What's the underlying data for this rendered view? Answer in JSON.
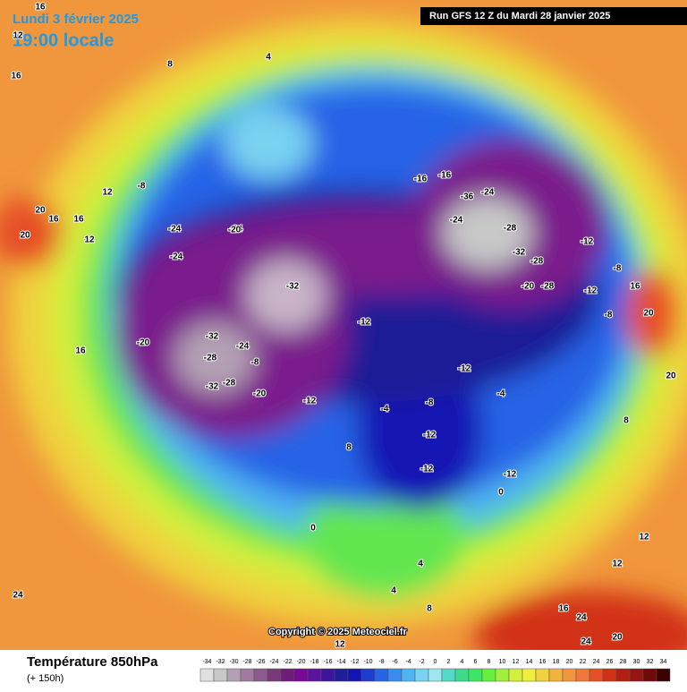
{
  "header": {
    "valid_date": "Lundi 3 février 2025",
    "local_time": "19:00 locale",
    "run": "Run GFS 12 Z du Mardi 28 janvier 2025"
  },
  "copyright": "Copyright © 2025 Meteociel.fr",
  "footer": {
    "title": "Température 850hPa",
    "lead": "(+ 150h)"
  },
  "colorbar": {
    "ticks": [
      -34,
      -32,
      -30,
      -28,
      -26,
      -24,
      -22,
      -20,
      -18,
      -16,
      -14,
      -12,
      -10,
      -8,
      -6,
      -4,
      -2,
      0,
      2,
      4,
      6,
      8,
      10,
      12,
      14,
      16,
      18,
      20,
      22,
      24,
      26,
      28,
      30,
      32,
      34
    ],
    "colors": [
      "#e0e0e0",
      "#c8c8c8",
      "#b4a0b4",
      "#a07aa0",
      "#8c5a8c",
      "#7a3a7a",
      "#6e1e7a",
      "#7a0a96",
      "#5a14a0",
      "#3c14a0",
      "#1e1e96",
      "#1414b4",
      "#1e3cd2",
      "#2864e6",
      "#3c8cf0",
      "#50b4f0",
      "#78d2f0",
      "#a0e6f0",
      "#50dcc8",
      "#3cdc8c",
      "#3ce664",
      "#64f03c",
      "#a0f03c",
      "#d2f03c",
      "#f0f03c",
      "#f0d23c",
      "#f0b43c",
      "#f0963c",
      "#f0783c",
      "#e65028",
      "#d23214",
      "#b41e14",
      "#961414",
      "#6e0a0a",
      "#3c0000"
    ]
  },
  "contour_labels": [
    16,
    16,
    8,
    4,
    12,
    12,
    16,
    16,
    12,
    20,
    20,
    16,
    -8,
    -24,
    -24,
    -20,
    -24,
    -20,
    -32,
    -28,
    -24,
    -32,
    -20,
    -32,
    -28,
    -8,
    -12,
    -12,
    -12,
    -12,
    -12,
    -16,
    -24,
    -36,
    -24,
    -28,
    -32,
    -28,
    -20,
    -28,
    -12,
    -12,
    -8,
    -8,
    -4,
    -4,
    0,
    0,
    4,
    4,
    8,
    8,
    12,
    12,
    16,
    16,
    20,
    24,
    20,
    24,
    12,
    8,
    -12,
    -8,
    -16,
    24,
    20
  ]
}
